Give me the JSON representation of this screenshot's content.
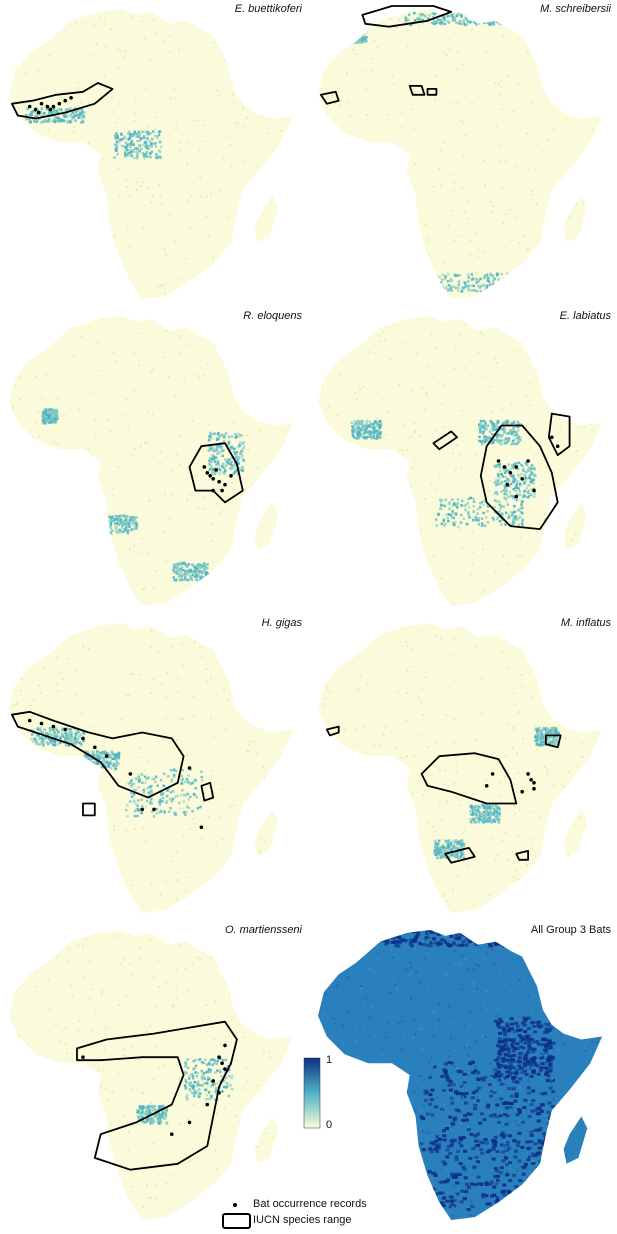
{
  "panels": [
    {
      "title": "E. buettikoferi",
      "italic": true,
      "mode": "range",
      "seed": 11,
      "hotspots": [
        [
          0.06,
          0.34,
          0.2,
          0.05
        ],
        [
          0.36,
          0.42,
          0.16,
          0.09
        ]
      ],
      "range": [
        [
          0.02,
          0.33
        ],
        [
          0.09,
          0.32
        ],
        [
          0.17,
          0.3
        ],
        [
          0.26,
          0.29
        ],
        [
          0.31,
          0.26
        ],
        [
          0.36,
          0.28
        ],
        [
          0.3,
          0.33
        ],
        [
          0.2,
          0.36
        ],
        [
          0.1,
          0.38
        ],
        [
          0.04,
          0.37
        ]
      ],
      "points": [
        [
          0.08,
          0.34
        ],
        [
          0.1,
          0.35
        ],
        [
          0.12,
          0.33
        ],
        [
          0.14,
          0.34
        ],
        [
          0.16,
          0.34
        ],
        [
          0.18,
          0.33
        ],
        [
          0.2,
          0.32
        ],
        [
          0.11,
          0.36
        ],
        [
          0.15,
          0.35
        ],
        [
          0.22,
          0.31
        ]
      ]
    },
    {
      "title": "M. schreibersii",
      "italic": true,
      "mode": "range",
      "seed": 23,
      "hotspots": [
        [
          0.3,
          0.02,
          0.4,
          0.04
        ],
        [
          0.35,
          0.9,
          0.3,
          0.06
        ],
        [
          0.12,
          0.07,
          0.05,
          0.05
        ]
      ],
      "range": [
        [
          0.16,
          0.03
        ],
        [
          0.26,
          0.0
        ],
        [
          0.4,
          0.0
        ],
        [
          0.46,
          0.02
        ],
        [
          0.38,
          0.05
        ],
        [
          0.25,
          0.07
        ],
        [
          0.17,
          0.06
        ]
      ],
      "range2": [
        [
          0.02,
          0.3
        ],
        [
          0.07,
          0.29
        ],
        [
          0.08,
          0.32
        ],
        [
          0.04,
          0.33
        ]
      ],
      "range3": [
        [
          0.32,
          0.27
        ],
        [
          0.36,
          0.27
        ],
        [
          0.37,
          0.3
        ],
        [
          0.33,
          0.3
        ]
      ],
      "range4": [
        [
          0.38,
          0.28
        ],
        [
          0.41,
          0.28
        ],
        [
          0.41,
          0.3
        ],
        [
          0.38,
          0.3
        ]
      ],
      "points": []
    },
    {
      "title": "R. eloquens",
      "italic": true,
      "mode": "range",
      "seed": 37,
      "hotspots": [
        [
          0.68,
          0.4,
          0.12,
          0.14
        ],
        [
          0.3,
          0.68,
          0.14,
          0.06
        ],
        [
          0.56,
          0.84,
          0.12,
          0.06
        ],
        [
          0.12,
          0.32,
          0.05,
          0.05
        ]
      ],
      "range": [
        [
          0.62,
          0.52
        ],
        [
          0.66,
          0.45
        ],
        [
          0.74,
          0.44
        ],
        [
          0.78,
          0.51
        ],
        [
          0.8,
          0.6
        ],
        [
          0.74,
          0.64
        ],
        [
          0.7,
          0.6
        ],
        [
          0.64,
          0.6
        ]
      ],
      "points": [
        [
          0.68,
          0.54
        ],
        [
          0.69,
          0.55
        ],
        [
          0.7,
          0.56
        ],
        [
          0.72,
          0.57
        ],
        [
          0.71,
          0.53
        ],
        [
          0.74,
          0.58
        ],
        [
          0.7,
          0.6
        ],
        [
          0.67,
          0.52
        ],
        [
          0.76,
          0.55
        ],
        [
          0.73,
          0.6
        ]
      ]
    },
    {
      "title": "E. labiatus",
      "italic": true,
      "mode": "range",
      "seed": 41,
      "hotspots": [
        [
          0.4,
          0.62,
          0.3,
          0.1
        ],
        [
          0.55,
          0.36,
          0.14,
          0.08
        ],
        [
          0.12,
          0.36,
          0.1,
          0.06
        ],
        [
          0.6,
          0.5,
          0.14,
          0.12
        ]
      ],
      "range": [
        [
          0.58,
          0.45
        ],
        [
          0.63,
          0.38
        ],
        [
          0.7,
          0.38
        ],
        [
          0.76,
          0.45
        ],
        [
          0.8,
          0.54
        ],
        [
          0.82,
          0.64
        ],
        [
          0.76,
          0.73
        ],
        [
          0.66,
          0.72
        ],
        [
          0.58,
          0.64
        ],
        [
          0.56,
          0.55
        ]
      ],
      "range2": [
        [
          0.4,
          0.44
        ],
        [
          0.46,
          0.4
        ],
        [
          0.48,
          0.42
        ],
        [
          0.42,
          0.46
        ]
      ],
      "range3": [
        [
          0.8,
          0.34
        ],
        [
          0.86,
          0.35
        ],
        [
          0.86,
          0.45
        ],
        [
          0.82,
          0.48
        ],
        [
          0.79,
          0.42
        ]
      ],
      "points": [
        [
          0.62,
          0.5
        ],
        [
          0.64,
          0.52
        ],
        [
          0.66,
          0.54
        ],
        [
          0.68,
          0.52
        ],
        [
          0.7,
          0.56
        ],
        [
          0.65,
          0.58
        ],
        [
          0.72,
          0.5
        ],
        [
          0.74,
          0.6
        ],
        [
          0.68,
          0.62
        ],
        [
          0.8,
          0.42
        ],
        [
          0.82,
          0.45
        ]
      ]
    },
    {
      "title": "H. gigas",
      "italic": true,
      "mode": "range",
      "seed": 53,
      "hotspots": [
        [
          0.4,
          0.5,
          0.26,
          0.16
        ],
        [
          0.08,
          0.36,
          0.18,
          0.06
        ],
        [
          0.26,
          0.44,
          0.12,
          0.06
        ]
      ],
      "range": [
        [
          0.02,
          0.32
        ],
        [
          0.08,
          0.31
        ],
        [
          0.16,
          0.34
        ],
        [
          0.28,
          0.38
        ],
        [
          0.36,
          0.4
        ],
        [
          0.46,
          0.38
        ],
        [
          0.56,
          0.4
        ],
        [
          0.6,
          0.46
        ],
        [
          0.58,
          0.55
        ],
        [
          0.48,
          0.6
        ],
        [
          0.38,
          0.56
        ],
        [
          0.32,
          0.48
        ],
        [
          0.22,
          0.42
        ],
        [
          0.1,
          0.38
        ],
        [
          0.04,
          0.36
        ]
      ],
      "range2": [
        [
          0.66,
          0.56
        ],
        [
          0.69,
          0.55
        ],
        [
          0.7,
          0.6
        ],
        [
          0.67,
          0.61
        ]
      ],
      "range3": [
        [
          0.26,
          0.62
        ],
        [
          0.3,
          0.62
        ],
        [
          0.3,
          0.66
        ],
        [
          0.26,
          0.66
        ]
      ],
      "points": [
        [
          0.08,
          0.34
        ],
        [
          0.12,
          0.35
        ],
        [
          0.16,
          0.36
        ],
        [
          0.2,
          0.37
        ],
        [
          0.26,
          0.4
        ],
        [
          0.3,
          0.43
        ],
        [
          0.34,
          0.46
        ],
        [
          0.42,
          0.52
        ],
        [
          0.62,
          0.5
        ],
        [
          0.46,
          0.64
        ],
        [
          0.5,
          0.64
        ],
        [
          0.66,
          0.7
        ]
      ]
    },
    {
      "title": "M. inflatus",
      "italic": true,
      "mode": "range",
      "seed": 61,
      "hotspots": [
        [
          0.74,
          0.36,
          0.08,
          0.06
        ],
        [
          0.4,
          0.74,
          0.1,
          0.06
        ],
        [
          0.52,
          0.62,
          0.1,
          0.06
        ]
      ],
      "range": [
        [
          0.36,
          0.52
        ],
        [
          0.42,
          0.46
        ],
        [
          0.54,
          0.45
        ],
        [
          0.62,
          0.47
        ],
        [
          0.66,
          0.54
        ],
        [
          0.68,
          0.62
        ],
        [
          0.58,
          0.62
        ],
        [
          0.46,
          0.58
        ],
        [
          0.38,
          0.56
        ]
      ],
      "range2": [
        [
          0.04,
          0.37
        ],
        [
          0.08,
          0.36
        ],
        [
          0.08,
          0.38
        ],
        [
          0.05,
          0.39
        ]
      ],
      "range3": [
        [
          0.78,
          0.39
        ],
        [
          0.83,
          0.39
        ],
        [
          0.82,
          0.43
        ],
        [
          0.78,
          0.42
        ]
      ],
      "range4": [
        [
          0.44,
          0.79
        ],
        [
          0.52,
          0.77
        ],
        [
          0.54,
          0.8
        ],
        [
          0.46,
          0.82
        ]
      ],
      "range5": [
        [
          0.68,
          0.79
        ],
        [
          0.72,
          0.78
        ],
        [
          0.72,
          0.81
        ],
        [
          0.69,
          0.81
        ]
      ],
      "points": [
        [
          0.72,
          0.52
        ],
        [
          0.73,
          0.54
        ],
        [
          0.74,
          0.55
        ],
        [
          0.74,
          0.57
        ],
        [
          0.7,
          0.58
        ],
        [
          0.6,
          0.52
        ],
        [
          0.58,
          0.56
        ]
      ]
    },
    {
      "title": "O. martiensseni",
      "italic": true,
      "mode": "range",
      "seed": 73,
      "hotspots": [
        [
          0.6,
          0.44,
          0.16,
          0.14
        ],
        [
          0.44,
          0.6,
          0.1,
          0.06
        ]
      ],
      "range": [
        [
          0.24,
          0.41
        ],
        [
          0.34,
          0.38
        ],
        [
          0.5,
          0.36
        ],
        [
          0.62,
          0.34
        ],
        [
          0.74,
          0.32
        ],
        [
          0.78,
          0.38
        ],
        [
          0.76,
          0.46
        ],
        [
          0.72,
          0.54
        ],
        [
          0.7,
          0.64
        ],
        [
          0.68,
          0.74
        ],
        [
          0.58,
          0.8
        ],
        [
          0.42,
          0.82
        ],
        [
          0.3,
          0.78
        ],
        [
          0.32,
          0.7
        ],
        [
          0.44,
          0.66
        ],
        [
          0.56,
          0.6
        ],
        [
          0.6,
          0.5
        ],
        [
          0.58,
          0.44
        ],
        [
          0.46,
          0.44
        ],
        [
          0.32,
          0.45
        ],
        [
          0.24,
          0.45
        ]
      ],
      "points": [
        [
          0.26,
          0.44
        ],
        [
          0.72,
          0.44
        ],
        [
          0.73,
          0.46
        ],
        [
          0.74,
          0.48
        ],
        [
          0.7,
          0.52
        ],
        [
          0.72,
          0.56
        ],
        [
          0.68,
          0.6
        ],
        [
          0.56,
          0.7
        ],
        [
          0.62,
          0.66
        ],
        [
          0.74,
          0.4
        ]
      ]
    },
    {
      "title": "All Group 3 Bats",
      "italic": false,
      "mode": "all",
      "seed": 89,
      "hotspots": [],
      "range": [],
      "points": []
    }
  ],
  "legend": {
    "scale_max": "1",
    "scale_min": "0",
    "points_label": "Bat occurrence records",
    "range_label": "IUCN species range"
  },
  "colors": {
    "low": "#fbfbdc",
    "mid": "#4fb3c6",
    "high": "#0d2f86",
    "range_stroke": "#000000"
  }
}
